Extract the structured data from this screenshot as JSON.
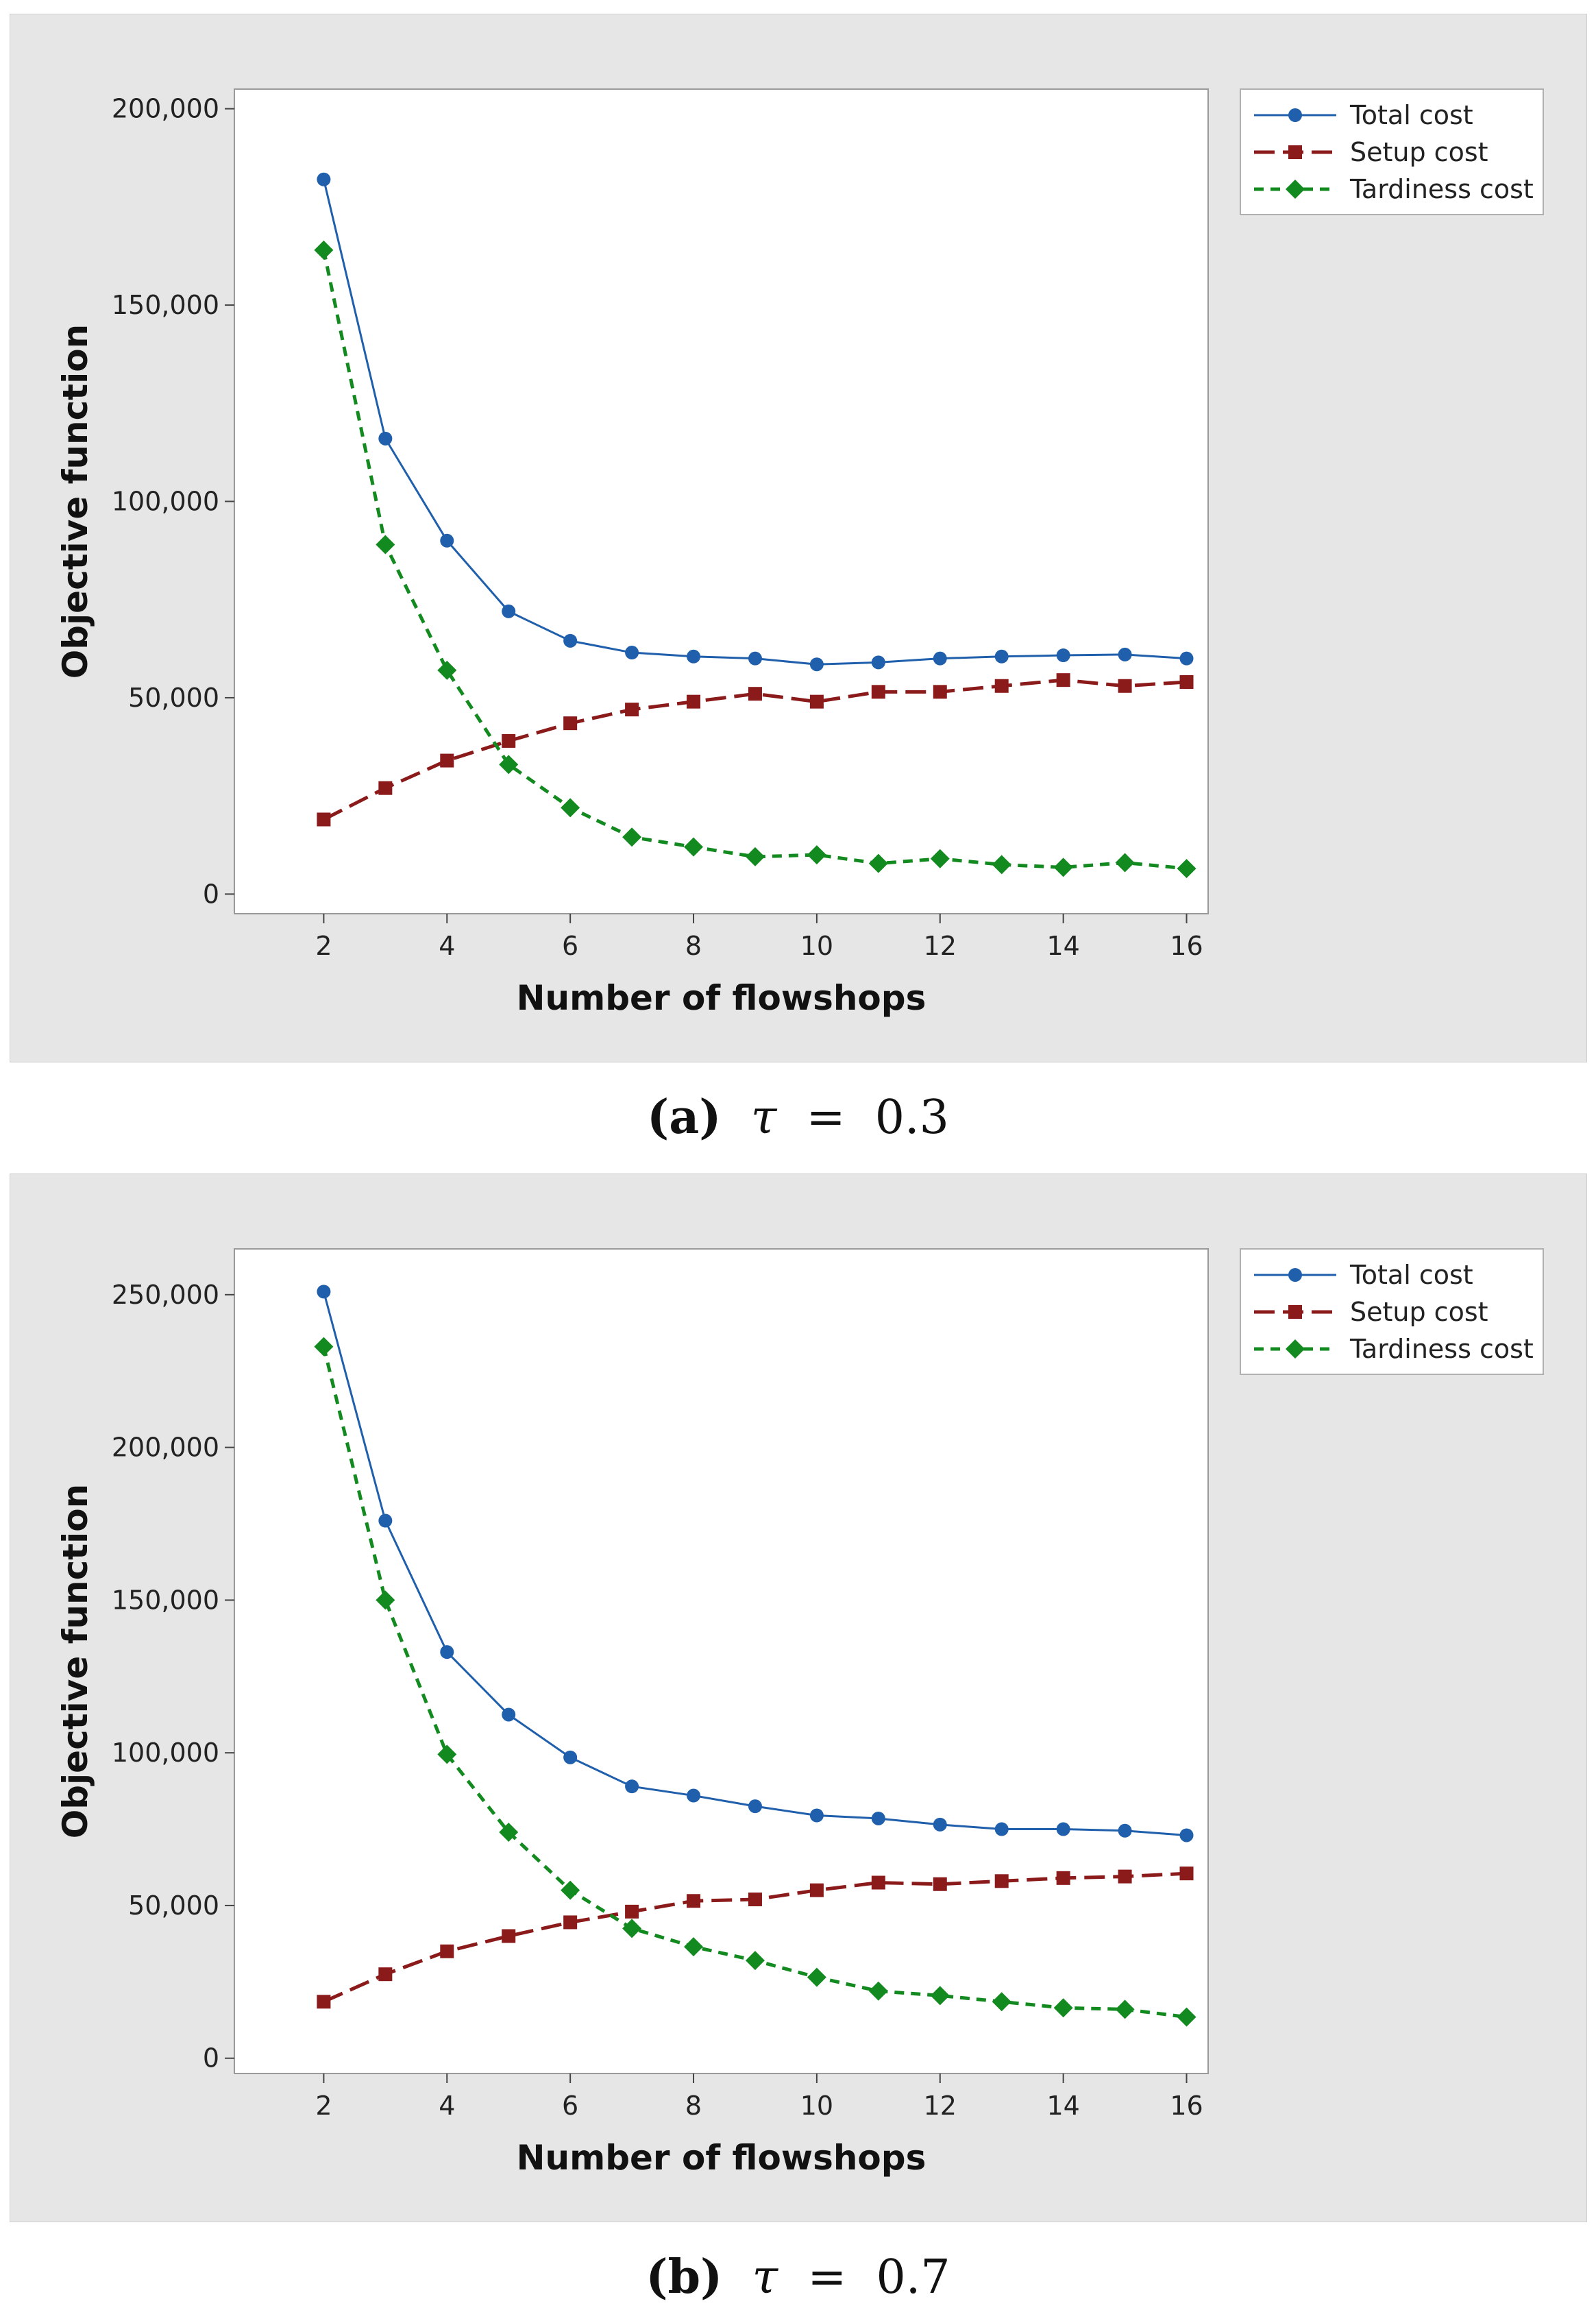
{
  "chart_data": [
    {
      "id": "a",
      "type": "line",
      "caption": {
        "label": "(a)",
        "symbol": "τ",
        "equals": "=",
        "value": "0.3"
      },
      "xlabel": "Number of flowshops",
      "ylabel": "Objective function",
      "xlim": [
        0.55,
        16.35
      ],
      "ylim": [
        -5000,
        205000
      ],
      "xticks": [
        2,
        4,
        6,
        8,
        10,
        12,
        14,
        16
      ],
      "yticks": [
        0,
        50000,
        100000,
        150000,
        200000
      ],
      "ytick_labels": [
        "0",
        "50,000",
        "100,000",
        "150,000",
        "200,000"
      ],
      "x": [
        2,
        3,
        4,
        5,
        6,
        7,
        8,
        9,
        10,
        11,
        12,
        13,
        14,
        15,
        16
      ],
      "legend_position": "top-right outside plot",
      "series": [
        {
          "name": "Total cost",
          "color": "#1f5fab",
          "marker": "circle",
          "line": "solid",
          "values": [
            182000,
            116000,
            90000,
            72000,
            64500,
            61500,
            60500,
            60000,
            58500,
            59000,
            60000,
            60500,
            60800,
            61000,
            60000
          ]
        },
        {
          "name": "Setup cost",
          "color": "#8b1a1a",
          "marker": "square",
          "line": "dashed",
          "values": [
            19000,
            27000,
            34000,
            39000,
            43500,
            47000,
            49000,
            51000,
            49000,
            51500,
            51500,
            53000,
            54500,
            53000,
            54000
          ]
        },
        {
          "name": "Tardiness cost",
          "color": "#138a1f",
          "marker": "diamond",
          "line": "dotted",
          "values": [
            164000,
            89000,
            57000,
            33000,
            22000,
            14500,
            12000,
            9500,
            10000,
            7800,
            9000,
            7500,
            6800,
            8000,
            6500
          ]
        }
      ]
    },
    {
      "id": "b",
      "type": "line",
      "caption": {
        "label": "(b)",
        "symbol": "τ",
        "equals": "=",
        "value": "0.7"
      },
      "xlabel": "Number of flowshops",
      "ylabel": "Objective function",
      "xlim": [
        0.55,
        16.35
      ],
      "ylim": [
        -5000,
        265000
      ],
      "xticks": [
        2,
        4,
        6,
        8,
        10,
        12,
        14,
        16
      ],
      "yticks": [
        0,
        50000,
        100000,
        150000,
        200000,
        250000
      ],
      "ytick_labels": [
        "0",
        "50,000",
        "100,000",
        "150,000",
        "200,000",
        "250,000"
      ],
      "x": [
        2,
        3,
        4,
        5,
        6,
        7,
        8,
        9,
        10,
        11,
        12,
        13,
        14,
        15,
        16
      ],
      "legend_position": "top-right outside plot",
      "series": [
        {
          "name": "Total cost",
          "color": "#1f5fab",
          "marker": "circle",
          "line": "solid",
          "values": [
            251000,
            176000,
            133000,
            112500,
            98500,
            89000,
            86000,
            82500,
            79500,
            78500,
            76500,
            75000,
            75000,
            74500,
            73000
          ]
        },
        {
          "name": "Setup cost",
          "color": "#8b1a1a",
          "marker": "square",
          "line": "dashed",
          "values": [
            18500,
            27500,
            35000,
            40000,
            44500,
            48000,
            51500,
            52000,
            55000,
            57500,
            57000,
            58000,
            59000,
            59500,
            60500
          ]
        },
        {
          "name": "Tardiness cost",
          "color": "#138a1f",
          "marker": "diamond",
          "line": "dotted",
          "values": [
            233000,
            150000,
            99500,
            74000,
            55000,
            42500,
            36500,
            32000,
            26500,
            22000,
            20500,
            18500,
            16500,
            16000,
            13500
          ]
        }
      ]
    }
  ]
}
